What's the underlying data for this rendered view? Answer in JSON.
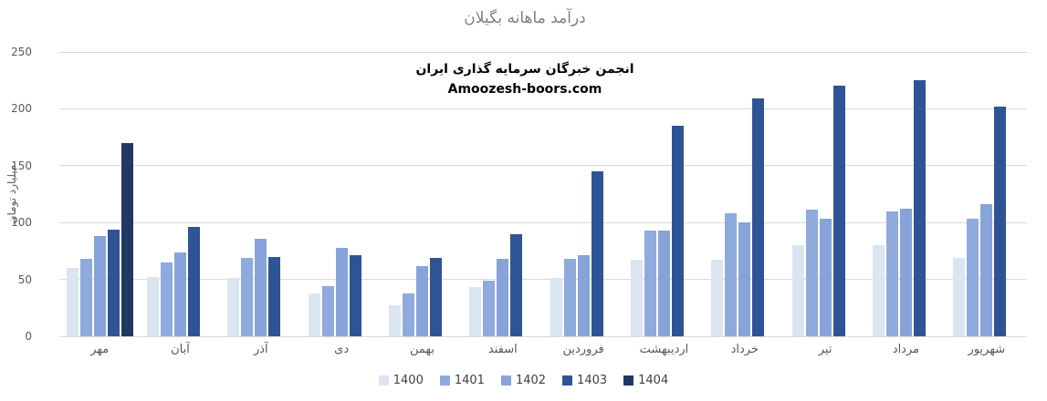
{
  "title": "درآمد ماهانه بگیلان",
  "annotation": {
    "line1": "انجمن خبرگان سرمایه گذاری ایران",
    "line2": "Amoozesh-boors.com"
  },
  "colors": {
    "title_text": "#7f7f7f",
    "axis_text": "#595959",
    "gridline": "#d9d9d9",
    "annotation_text": "#000000",
    "series_1400": "#dbe5f2",
    "series_1401": "#8faadc",
    "series_1402": "#88a3d9",
    "series_1403": "#2f5496",
    "series_1404": "#1f3864"
  },
  "chart_data": {
    "type": "bar",
    "title": "درآمد ماهانه بگیلان",
    "xlabel": "",
    "ylabel": "میلیارد تومان",
    "ylim": [
      0,
      250
    ],
    "yticks": [
      0,
      50,
      100,
      150,
      200,
      250
    ],
    "grid": true,
    "legend_position": "bottom-center",
    "categories": [
      "مهر",
      "آبان",
      "آذر",
      "دی",
      "بهمن",
      "اسفند",
      "فروردین",
      "اردیبهشت",
      "خرداد",
      "تیر",
      "مرداد",
      "شهریور"
    ],
    "series": [
      {
        "name": "1400",
        "color": "#dbe5f2",
        "values": [
          60,
          52,
          51,
          38,
          27,
          43,
          51,
          67,
          67,
          80,
          80,
          69
        ]
      },
      {
        "name": "1401",
        "color": "#8faadc",
        "values": [
          68,
          65,
          69,
          44,
          38,
          49,
          68,
          93,
          108,
          111,
          110,
          103
        ]
      },
      {
        "name": "1402",
        "color": "#88a3d9",
        "values": [
          88,
          74,
          86,
          78,
          62,
          68,
          71,
          93,
          100,
          103,
          112,
          116
        ]
      },
      {
        "name": "1403",
        "color": "#2f5496",
        "values": [
          94,
          96,
          70,
          71,
          69,
          90,
          145,
          185,
          209,
          220,
          225,
          202
        ]
      },
      {
        "name": "1404",
        "color": "#1f3864",
        "values": [
          170,
          null,
          null,
          null,
          null,
          null,
          null,
          null,
          null,
          null,
          null,
          null
        ]
      }
    ]
  }
}
